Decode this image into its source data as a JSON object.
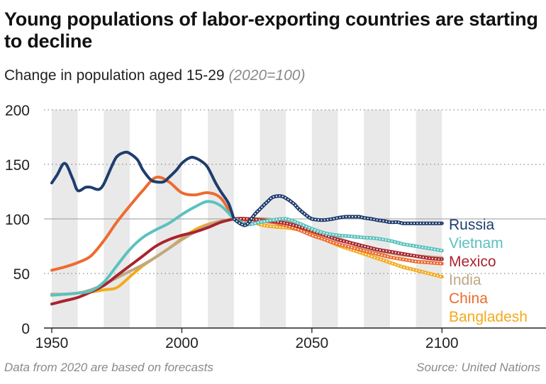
{
  "header": {
    "title": "Young populations of labor-exporting countries are starting to decline",
    "subtitle": "Change in population aged 15-29",
    "subtitle_note": "(2020=100)"
  },
  "footer": {
    "note": "Data from 2020 are based on forecasts",
    "source": "Source: United Nations"
  },
  "chart_data": {
    "type": "line",
    "xlim": [
      1947,
      2140
    ],
    "ylim": [
      0,
      200
    ],
    "x_ticks": [
      1950,
      2000,
      2050,
      2100
    ],
    "y_ticks": [
      0,
      50,
      100,
      150,
      200
    ],
    "forecast_from": 2020,
    "baseline": 100,
    "grid": "dotted horizontal",
    "shaded_bands": [
      [
        1950,
        1960
      ],
      [
        1970,
        1980
      ],
      [
        1990,
        2000
      ],
      [
        2010,
        2020
      ],
      [
        2030,
        2040
      ],
      [
        2050,
        2060
      ],
      [
        2070,
        2080
      ],
      [
        2090,
        2100
      ]
    ],
    "series": [
      {
        "name": "Bangladesh",
        "color": "#F3AA1C",
        "x": [
          1950,
          1955,
          1960,
          1965,
          1970,
          1975,
          1980,
          1985,
          1990,
          1995,
          2000,
          2005,
          2010,
          2015,
          2020,
          2025,
          2030,
          2035,
          2040,
          2045,
          2050,
          2055,
          2060,
          2065,
          2070,
          2075,
          2080,
          2085,
          2090,
          2095,
          2100
        ],
        "y": [
          31,
          31,
          32,
          33,
          35,
          37,
          47,
          57,
          65,
          73,
          82,
          90,
          95,
          98,
          100,
          100,
          95,
          93,
          92,
          90,
          86,
          81,
          76,
          72,
          68,
          64,
          60,
          56,
          53,
          50,
          47
        ]
      },
      {
        "name": "China",
        "color": "#EE6A2F",
        "x": [
          1950,
          1955,
          1960,
          1965,
          1970,
          1975,
          1980,
          1985,
          1990,
          1995,
          2000,
          2005,
          2010,
          2015,
          2020,
          2025,
          2030,
          2035,
          2040,
          2045,
          2050,
          2055,
          2060,
          2065,
          2070,
          2075,
          2080,
          2085,
          2090,
          2095,
          2100
        ],
        "y": [
          53,
          56,
          60,
          66,
          80,
          97,
          112,
          126,
          138,
          134,
          124,
          122,
          124,
          119,
          100,
          97,
          98,
          97,
          94,
          90,
          85,
          81,
          77,
          74,
          71,
          68,
          65,
          63,
          61,
          60,
          59
        ]
      },
      {
        "name": "India",
        "color": "#BFA882",
        "x": [
          1950,
          1955,
          1960,
          1965,
          1970,
          1975,
          1980,
          1985,
          1990,
          1995,
          2000,
          2005,
          2010,
          2015,
          2020,
          2025,
          2030,
          2035,
          2040,
          2045,
          2050,
          2055,
          2060,
          2065,
          2070,
          2075,
          2080,
          2085,
          2090,
          2095,
          2100
        ],
        "y": [
          31,
          31,
          32,
          35,
          40,
          46,
          52,
          58,
          65,
          73,
          81,
          88,
          94,
          98,
          100,
          100,
          100,
          99,
          97,
          94,
          90,
          86,
          82,
          78,
          74,
          71,
          69,
          67,
          66,
          65,
          64
        ]
      },
      {
        "name": "Mexico",
        "color": "#A8242F",
        "x": [
          1950,
          1955,
          1960,
          1965,
          1970,
          1975,
          1980,
          1985,
          1990,
          1995,
          2000,
          2005,
          2010,
          2015,
          2020,
          2025,
          2030,
          2035,
          2040,
          2045,
          2050,
          2055,
          2060,
          2065,
          2070,
          2075,
          2080,
          2085,
          2090,
          2095,
          2100
        ],
        "y": [
          22,
          25,
          28,
          33,
          39,
          48,
          57,
          66,
          75,
          81,
          85,
          88,
          92,
          97,
          100,
          100,
          99,
          98,
          96,
          93,
          89,
          85,
          81,
          78,
          75,
          72,
          70,
          68,
          66,
          64,
          63
        ]
      },
      {
        "name": "Vietnam",
        "color": "#5BC2BE",
        "x": [
          1950,
          1955,
          1960,
          1965,
          1970,
          1975,
          1980,
          1985,
          1990,
          1995,
          2000,
          2005,
          2010,
          2015,
          2020,
          2025,
          2030,
          2035,
          2040,
          2045,
          2050,
          2055,
          2060,
          2065,
          2070,
          2075,
          2080,
          2085,
          2090,
          2095,
          2100
        ],
        "y": [
          30,
          31,
          32,
          34,
          42,
          57,
          72,
          83,
          90,
          96,
          104,
          111,
          116,
          112,
          100,
          95,
          97,
          99,
          100,
          96,
          91,
          87,
          85,
          84,
          83,
          82,
          80,
          77,
          75,
          73,
          71
        ]
      },
      {
        "name": "Russia",
        "color": "#1F3D6E",
        "x": [
          1950,
          1952,
          1955,
          1958,
          1960,
          1963,
          1965,
          1968,
          1970,
          1973,
          1975,
          1978,
          1980,
          1983,
          1985,
          1988,
          1990,
          1993,
          1995,
          1998,
          2000,
          2003,
          2005,
          2008,
          2010,
          2013,
          2015,
          2018,
          2020,
          2023,
          2025,
          2028,
          2030,
          2033,
          2035,
          2038,
          2040,
          2043,
          2045,
          2048,
          2050,
          2053,
          2055,
          2058,
          2060,
          2063,
          2065,
          2068,
          2070,
          2073,
          2075,
          2078,
          2080,
          2083,
          2085,
          2088,
          2090,
          2093,
          2095,
          2098,
          2100
        ],
        "y": [
          133,
          140,
          151,
          137,
          126,
          129,
          129,
          127,
          132,
          148,
          157,
          161,
          160,
          154,
          145,
          136,
          134,
          134,
          138,
          145,
          151,
          156,
          156,
          152,
          147,
          133,
          125,
          114,
          100,
          95,
          95,
          104,
          109,
          116,
          120,
          121,
          119,
          114,
          109,
          103,
          100,
          99,
          99,
          100,
          101,
          102,
          102,
          102,
          101,
          100,
          99,
          98,
          97,
          97,
          96,
          96,
          96,
          96,
          96,
          96,
          96
        ]
      }
    ]
  }
}
